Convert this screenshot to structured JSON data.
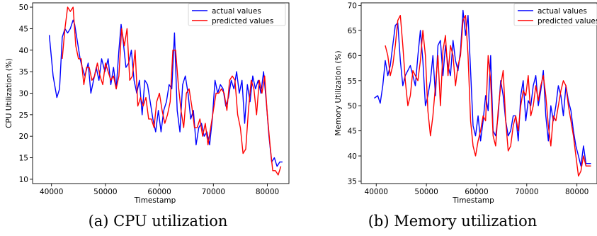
{
  "chart_data": [
    {
      "type": "line",
      "caption": "(a) CPU utilization",
      "xlabel": "Timestamp",
      "ylabel": "CPU Utilization (%)",
      "xlim": [
        36500,
        84000
      ],
      "ylim": [
        9,
        51
      ],
      "xticks": [
        40000,
        50000,
        60000,
        70000,
        80000
      ],
      "yticks": [
        10,
        15,
        20,
        25,
        30,
        35,
        40,
        45,
        50
      ],
      "legend": "top-right",
      "series": [
        {
          "name": "actual values",
          "color": "#0000ff",
          "x": [
            39600,
            40300,
            41000,
            41500,
            42000,
            42500,
            43000,
            43500,
            44000,
            44300,
            44800,
            45300,
            45700,
            46200,
            46800,
            47300,
            47800,
            48300,
            48800,
            49300,
            49900,
            50500,
            51000,
            51500,
            52000,
            52500,
            52900,
            53300,
            53800,
            54300,
            54800,
            55300,
            55800,
            56300,
            56800,
            57300,
            57800,
            58300,
            58800,
            59300,
            59800,
            60300,
            60800,
            61300,
            61800,
            62300,
            62800,
            63300,
            63800,
            64300,
            64800,
            65300,
            65800,
            66300,
            66800,
            67300,
            67800,
            68300,
            68800,
            69300,
            69800,
            70300,
            70800,
            71300,
            71800,
            72300,
            72800,
            73300,
            73800,
            74300,
            74800,
            75300,
            75800,
            76300,
            76800,
            77300,
            77800,
            78300,
            78800,
            79300,
            79800,
            80300,
            80800,
            81300,
            81800,
            82300,
            82800
          ],
          "y": [
            43.5,
            34,
            29,
            31,
            43,
            45,
            44,
            45,
            47,
            46,
            42,
            38,
            36,
            34,
            37,
            30,
            33,
            36,
            33,
            38,
            35,
            38,
            32,
            36,
            31,
            40,
            46,
            42,
            36,
            37,
            40,
            33,
            30,
            33,
            25,
            33,
            32,
            28,
            24,
            21,
            26,
            21,
            26,
            28,
            32,
            31,
            44,
            26,
            21,
            32,
            34,
            30,
            24,
            26,
            18,
            22,
            23,
            20,
            21,
            18,
            24,
            33,
            30,
            32,
            31,
            27,
            29,
            33,
            31,
            35,
            30,
            33,
            23,
            32,
            28,
            34,
            31,
            33,
            30,
            35,
            28,
            20,
            14,
            15,
            13,
            14,
            14
          ]
        },
        {
          "name": "predicted values",
          "color": "#ff0000",
          "x": [
            42000,
            42500,
            43000,
            43500,
            44000,
            44500,
            45000,
            45500,
            46000,
            46500,
            47000,
            47500,
            48000,
            48500,
            49000,
            49500,
            50000,
            50500,
            51000,
            51500,
            52000,
            52500,
            53000,
            53500,
            54000,
            54500,
            55000,
            55500,
            56000,
            56500,
            57000,
            57500,
            58000,
            58500,
            59000,
            59500,
            60000,
            60500,
            61000,
            61500,
            62000,
            62500,
            63000,
            63500,
            64000,
            64500,
            65000,
            65500,
            66000,
            66500,
            67000,
            67500,
            68000,
            68500,
            69000,
            69500,
            70000,
            70500,
            71000,
            71500,
            72000,
            72500,
            73000,
            73500,
            74000,
            74500,
            75000,
            75500,
            76000,
            76500,
            77000,
            77500,
            78000,
            78500,
            79000,
            79500,
            80000,
            80500,
            81000,
            81500,
            82000,
            82500
          ],
          "y": [
            38,
            45,
            50,
            49,
            50,
            41,
            38,
            38,
            32,
            36,
            36,
            33,
            34,
            37,
            34,
            32,
            37,
            35,
            33,
            34,
            31,
            34,
            45,
            41,
            45,
            33,
            34,
            40,
            27,
            29,
            27,
            29,
            24,
            24,
            22,
            28,
            30,
            26,
            23,
            25,
            28,
            40,
            40,
            32,
            26,
            22,
            30,
            31,
            27,
            22,
            22,
            24,
            20,
            23,
            18,
            22,
            26,
            30,
            30,
            31,
            30,
            26,
            33,
            34,
            33,
            25,
            22,
            16,
            17,
            26,
            33,
            31,
            25,
            33,
            30,
            34,
            25,
            18,
            12,
            12,
            11,
            13
          ]
        }
      ]
    },
    {
      "type": "line",
      "caption": "(b) Memory utilization",
      "xlabel": "Timestamp",
      "ylabel": "Memory Utilization (%)",
      "xlim": [
        37000,
        84000
      ],
      "ylim": [
        34.5,
        70.5
      ],
      "xticks": [
        40000,
        50000,
        60000,
        70000,
        80000
      ],
      "yticks": [
        35,
        40,
        45,
        50,
        55,
        60,
        65,
        70
      ],
      "legend": "top-right",
      "series": [
        {
          "name": "actual values",
          "color": "#0000ff",
          "x": [
            39600,
            40300,
            40800,
            41300,
            41800,
            42300,
            42800,
            43300,
            43800,
            44300,
            44800,
            45300,
            45800,
            46300,
            46800,
            47300,
            47800,
            48300,
            48800,
            49300,
            49800,
            50300,
            50800,
            51300,
            51800,
            52300,
            52800,
            53300,
            53800,
            54300,
            54800,
            55300,
            55800,
            56300,
            56800,
            57300,
            57800,
            58300,
            58800,
            59300,
            59800,
            60300,
            60800,
            61300,
            61800,
            62300,
            62800,
            63300,
            63800,
            64300,
            64800,
            65300,
            65800,
            66300,
            66800,
            67300,
            67800,
            68300,
            68800,
            69300,
            69800,
            70300,
            70800,
            71300,
            71800,
            72300,
            72800,
            73300,
            73800,
            74300,
            74800,
            75300,
            75800,
            76300,
            76800,
            77300,
            77800,
            78300,
            78800,
            79300,
            79800,
            80300,
            80800,
            81300,
            81800,
            82300,
            82800
          ],
          "y": [
            51.5,
            52,
            50.5,
            54,
            59,
            56,
            58,
            62,
            66,
            66.5,
            59,
            54,
            56,
            57,
            58,
            56,
            54,
            60,
            65,
            59,
            50,
            52,
            55,
            60,
            52,
            62,
            63,
            56,
            62,
            58,
            56,
            63,
            59,
            57,
            61,
            69,
            64,
            68,
            57,
            46,
            44,
            48,
            43,
            47,
            52,
            49,
            60,
            45,
            44,
            48,
            55,
            52,
            47,
            44,
            45,
            48,
            48,
            43,
            52,
            55,
            47,
            51,
            50,
            54,
            56,
            50,
            53,
            57,
            48,
            43,
            50,
            47,
            50,
            54,
            52,
            48,
            54,
            51,
            49,
            45,
            42,
            40,
            38,
            42,
            38.5,
            38.5,
            38.5
          ]
        },
        {
          "name": "predicted values",
          "color": "#ff0000",
          "x": [
            41800,
            42300,
            42800,
            43300,
            43800,
            44300,
            44800,
            45300,
            45800,
            46300,
            46800,
            47300,
            47800,
            48300,
            48800,
            49300,
            49800,
            50300,
            50800,
            51300,
            51800,
            52300,
            52800,
            53300,
            53800,
            54300,
            54800,
            55300,
            55800,
            56300,
            56800,
            57300,
            57800,
            58300,
            58800,
            59300,
            59800,
            60300,
            60800,
            61300,
            61800,
            62300,
            62800,
            63300,
            63800,
            64300,
            64800,
            65300,
            65800,
            66300,
            66800,
            67300,
            67800,
            68300,
            68800,
            69300,
            69800,
            70300,
            70800,
            71300,
            71800,
            72300,
            72800,
            73300,
            73800,
            74300,
            74800,
            75300,
            75800,
            76300,
            76800,
            77300,
            77800,
            78300,
            78800,
            79300,
            79800,
            80300,
            80800,
            81300,
            81800,
            82300,
            82800
          ],
          "y": [
            62,
            60,
            56,
            58,
            62,
            67,
            68,
            62,
            55,
            50,
            52,
            57,
            56,
            55,
            59,
            65,
            60,
            49,
            44,
            48,
            54,
            60,
            50,
            61,
            64,
            56,
            62,
            60,
            54,
            58,
            60,
            67,
            68,
            60,
            47,
            42,
            40,
            43,
            45,
            48,
            47,
            60,
            55,
            44,
            42,
            49,
            54,
            57,
            47,
            41,
            42,
            46,
            48,
            45,
            50,
            53,
            52,
            56,
            48,
            50,
            54,
            51,
            54,
            56,
            52,
            46,
            42,
            48,
            47,
            50,
            53,
            55,
            54,
            50,
            47,
            44,
            40,
            36,
            37,
            40,
            38,
            38,
            38
          ]
        }
      ]
    }
  ]
}
